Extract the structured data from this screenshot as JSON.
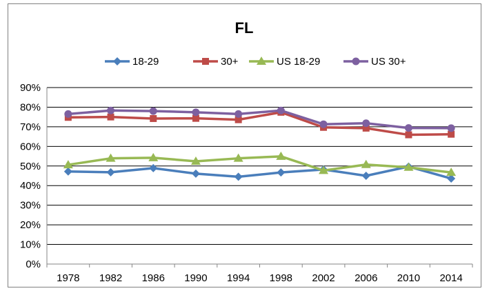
{
  "chart_data": {
    "type": "line",
    "title": "FL",
    "x": [
      "1978",
      "1982",
      "1986",
      "1990",
      "1994",
      "1998",
      "2002",
      "2006",
      "2010",
      "2014"
    ],
    "ylim": [
      0,
      0.9
    ],
    "yticks": [
      "0%",
      "10%",
      "20%",
      "30%",
      "40%",
      "50%",
      "60%",
      "70%",
      "80%",
      "90%"
    ],
    "grid": true,
    "legend_position": "top",
    "series": [
      {
        "name": "18-29",
        "color": "#4a7ebb",
        "marker": "diamond",
        "values": [
          0.472,
          0.468,
          0.489,
          0.461,
          0.445,
          0.467,
          0.482,
          0.45,
          0.497,
          0.436
        ]
      },
      {
        "name": "30+",
        "color": "#be4b48",
        "marker": "square",
        "values": [
          0.748,
          0.75,
          0.742,
          0.743,
          0.736,
          0.774,
          0.697,
          0.693,
          0.659,
          0.662
        ]
      },
      {
        "name": "US 18-29",
        "color": "#98b954",
        "marker": "triangle",
        "values": [
          0.506,
          0.539,
          0.542,
          0.524,
          0.539,
          0.549,
          0.477,
          0.507,
          0.493,
          0.467
        ]
      },
      {
        "name": "US 30+",
        "color": "#7d60a0",
        "marker": "circle",
        "values": [
          0.765,
          0.783,
          0.78,
          0.774,
          0.765,
          0.783,
          0.713,
          0.718,
          0.694,
          0.693
        ]
      }
    ]
  }
}
